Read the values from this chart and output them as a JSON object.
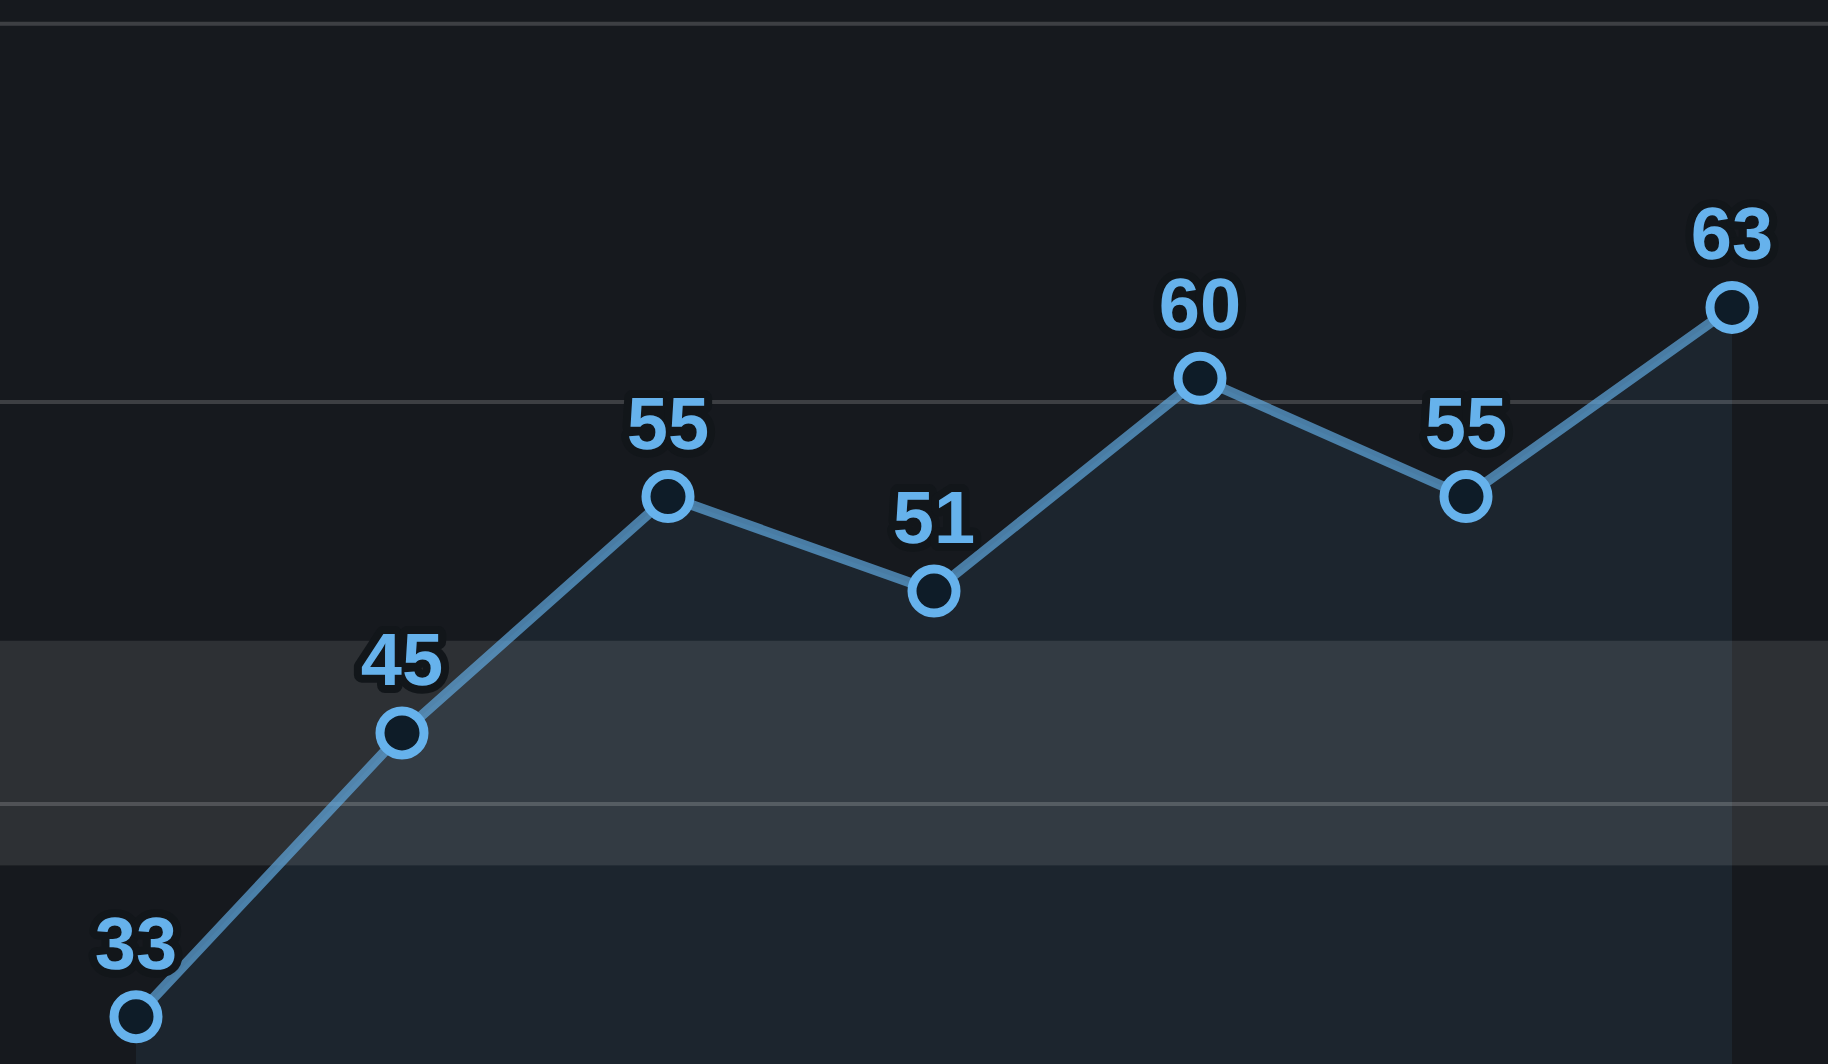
{
  "chart_data": {
    "type": "area",
    "categories": [
      null,
      null,
      null,
      null,
      null,
      null,
      null
    ],
    "values": [
      33,
      45,
      55,
      51,
      60,
      55,
      63
    ],
    "color": "#66b2ec",
    "ylim": [
      31,
      76
    ],
    "yticks": [
      {
        "value": 42,
        "label": null
      },
      {
        "value": 59,
        "label": null
      },
      {
        "value": 75,
        "label": null
      }
    ],
    "grid": "y",
    "bands": [
      {
        "axis": "y",
        "from": 39.4,
        "to": 48.9,
        "color": "#ffffff"
      }
    ],
    "marker": "circle",
    "data_labels": true
  }
}
